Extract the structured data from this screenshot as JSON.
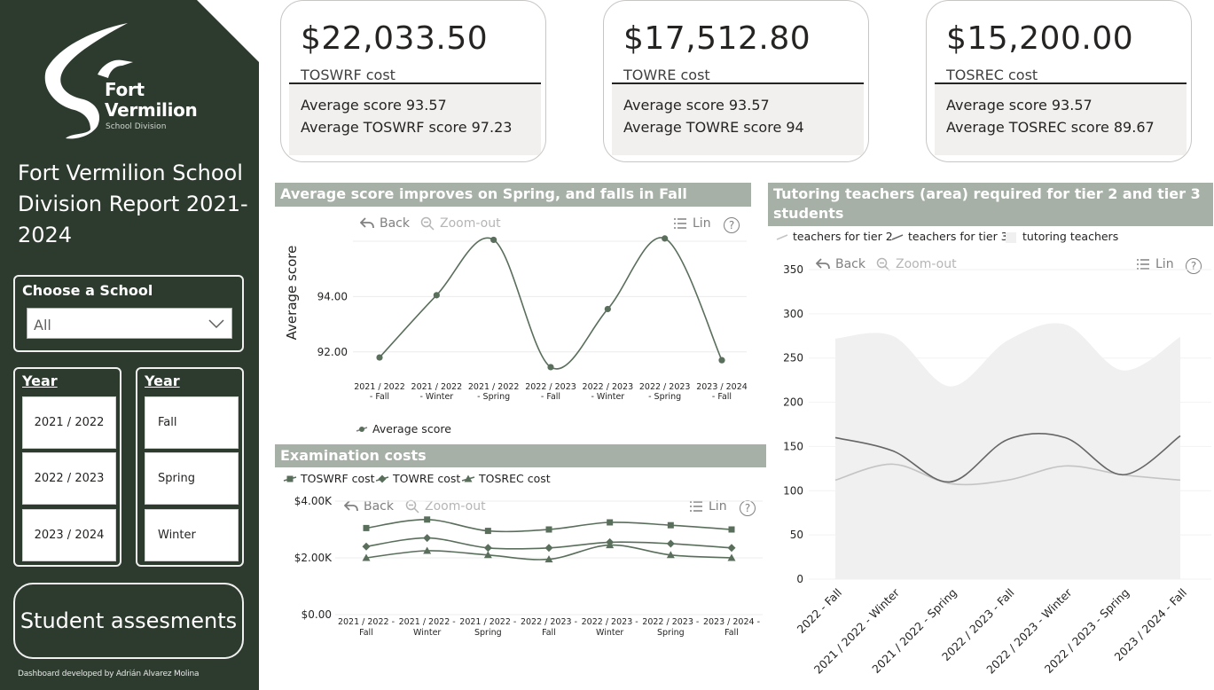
{
  "sidebar": {
    "logo": {
      "name_line1": "Fort",
      "name_line2": "Vermilion",
      "subtitle": "School Division"
    },
    "report_title": "Fort Vermilion School Division Report 2021-2024",
    "school_filter": {
      "label": "Choose a School",
      "value": "All"
    },
    "year_filter": {
      "label": "Year",
      "options": [
        "2021 / 2022",
        "2022 / 2023",
        "2023 / 2024"
      ]
    },
    "semester_filter": {
      "label": "Year",
      "options": [
        "Fall",
        "Spring",
        "Winter"
      ]
    },
    "nav_button": "Student assesments",
    "credit": "Dashboard developed by Adrián Alvarez Molina"
  },
  "kpis": [
    {
      "value": "$22,033.50",
      "label": "TOSWRF cost",
      "line1": "Average score 93.57",
      "line2": "Average TOSWRF score 97.23"
    },
    {
      "value": "$17,512.80",
      "label": "TOWRE cost",
      "line1": "Average score 93.57",
      "line2": "Average TOWRE score 94"
    },
    {
      "value": "$15,200.00",
      "label": "TOSREC cost",
      "line1": "Average score 93.57",
      "line2": "Average TOSREC score 89.67"
    }
  ],
  "toolbar": {
    "back": "Back",
    "zoom_out": "Zoom-out",
    "scale": "Lin",
    "help": "?"
  },
  "colors": {
    "sidebar": "#2d3b2f",
    "header": "#a6b0a6",
    "series_dark": "#5a6e5c",
    "tier2": "#c4c4c4",
    "tier3": "#666666",
    "area": "#f0f0f0"
  },
  "chart_data": [
    {
      "id": "score",
      "type": "line",
      "title": "Average score improves on Spring, and falls in Fall semester",
      "ylabel": "Average score",
      "ylim": [
        91,
        96
      ],
      "yticks": [
        "92.00",
        "94.00"
      ],
      "categories": [
        "2021 / 2022 - Fall",
        "2021 / 2022 - Winter",
        "2021 / 2022 - Spring",
        "2022 / 2023 - Fall",
        "2022 / 2023 - Winter",
        "2022 / 2023 - Spring",
        "2023 / 2024 - Fall"
      ],
      "series": [
        {
          "name": "Average score",
          "values": [
            91.8,
            94.05,
            96.05,
            91.45,
            93.55,
            96.1,
            91.7
          ]
        }
      ]
    },
    {
      "id": "costs",
      "type": "line",
      "title": "Examination costs",
      "ylim": [
        0,
        4000
      ],
      "yticks": [
        "$0.00",
        "$2.00K",
        "$4.00K"
      ],
      "categories": [
        "2021 / 2022 - Fall",
        "2021 / 2022 - Winter",
        "2021 / 2022 - Spring",
        "2022 / 2023 - Fall",
        "2022 / 2023 - Winter",
        "2022 / 2023 - Spring",
        "2023 / 2024 - Fall"
      ],
      "series": [
        {
          "name": "TOSWRF cost",
          "values": [
            3050,
            3350,
            2950,
            3000,
            3250,
            3150,
            3000
          ]
        },
        {
          "name": "TOWRE cost",
          "values": [
            2400,
            2700,
            2350,
            2350,
            2550,
            2500,
            2350
          ]
        },
        {
          "name": "TOSREC cost",
          "values": [
            2000,
            2250,
            2100,
            1950,
            2450,
            2100,
            2000
          ]
        }
      ]
    },
    {
      "id": "tutoring",
      "type": "area",
      "title": "Tutoring teachers (area) required for tier 2 and tier 3 students",
      "ylim": [
        0,
        350
      ],
      "yticks": [
        "0",
        "50",
        "100",
        "150",
        "200",
        "250",
        "300",
        "350"
      ],
      "categories": [
        "2022 - Fall",
        "2021 / 2022 - Winter",
        "2021 / 2022 - Spring",
        "2022 / 2023 - Fall",
        "2022 / 2023 - Winter",
        "2022 / 2023 - Spring",
        "2023 / 2024 - Fall"
      ],
      "series": [
        {
          "name": "teachers for tier 2",
          "values": [
            112,
            130,
            108,
            112,
            128,
            118,
            112
          ]
        },
        {
          "name": "teachers for tier 3",
          "values": [
            160,
            145,
            110,
            158,
            160,
            118,
            162
          ]
        },
        {
          "name": "tutoring teachers",
          "values": [
            272,
            275,
            218,
            270,
            288,
            236,
            274
          ]
        }
      ]
    }
  ]
}
